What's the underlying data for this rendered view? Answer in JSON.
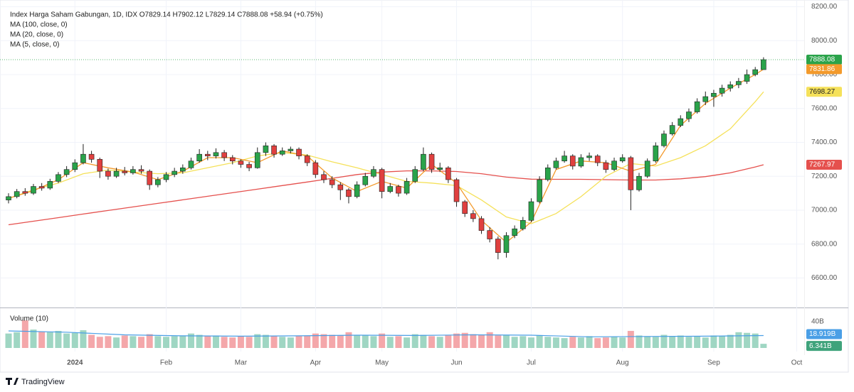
{
  "chart_data": {
    "type": "candlestick",
    "title": "Index Harga Saham Gabungan, 1D, IDX  O7829.14  H7902.12  L7829.14  C7888.08  +58.94 (+0.75%)",
    "up_color": "#2aa34a",
    "down_color": "#e0403f",
    "xlim": [
      -1.03,
      95.9
    ],
    "xticks": [
      {
        "value": 8,
        "label": "2024"
      },
      {
        "value": 19,
        "label": "Feb"
      },
      {
        "value": 28,
        "label": "Mar"
      },
      {
        "value": 37,
        "label": "Apr"
      },
      {
        "value": 45,
        "label": "May"
      },
      {
        "value": 54,
        "label": "Jun"
      },
      {
        "value": 63,
        "label": "Jul"
      },
      {
        "value": 74,
        "label": "Aug"
      },
      {
        "value": 85,
        "label": "Sep"
      },
      {
        "value": 95,
        "label": "Oct"
      }
    ],
    "ylim": [
      6430,
      8240
    ],
    "yticks": [
      {
        "value": 6600,
        "label": "6600.00"
      },
      {
        "value": 6800,
        "label": "6800.00"
      },
      {
        "value": 7000,
        "label": "7000.00"
      },
      {
        "value": 7200,
        "label": "7200.00"
      },
      {
        "value": 7400,
        "label": "7400.00"
      },
      {
        "value": 7600,
        "label": "7600.00"
      },
      {
        "value": 7800,
        "label": "7800.00"
      },
      {
        "value": 8000,
        "label": "8000.00"
      },
      {
        "value": 8200,
        "label": "8200.00"
      }
    ],
    "grid": true,
    "candles": [
      [
        7060,
        7100,
        7040,
        7080
      ],
      [
        7080,
        7125,
        7070,
        7110
      ],
      [
        7110,
        7130,
        7085,
        7100
      ],
      [
        7100,
        7155,
        7090,
        7140
      ],
      [
        7140,
        7160,
        7115,
        7130
      ],
      [
        7130,
        7185,
        7120,
        7170
      ],
      [
        7170,
        7225,
        7160,
        7210
      ],
      [
        7210,
        7260,
        7195,
        7240
      ],
      [
        7240,
        7300,
        7225,
        7280
      ],
      [
        7280,
        7390,
        7270,
        7330
      ],
      [
        7330,
        7350,
        7280,
        7300
      ],
      [
        7300,
        7310,
        7190,
        7230
      ],
      [
        7230,
        7245,
        7180,
        7200
      ],
      [
        7200,
        7250,
        7190,
        7230
      ],
      [
        7230,
        7255,
        7205,
        7220
      ],
      [
        7220,
        7260,
        7210,
        7240
      ],
      [
        7240,
        7265,
        7215,
        7230
      ],
      [
        7230,
        7240,
        7120,
        7150
      ],
      [
        7150,
        7195,
        7135,
        7180
      ],
      [
        7180,
        7225,
        7165,
        7210
      ],
      [
        7210,
        7250,
        7195,
        7230
      ],
      [
        7230,
        7270,
        7215,
        7250
      ],
      [
        7250,
        7310,
        7240,
        7290
      ],
      [
        7290,
        7360,
        7280,
        7330
      ],
      [
        7330,
        7350,
        7295,
        7320
      ],
      [
        7320,
        7365,
        7305,
        7340
      ],
      [
        7340,
        7355,
        7290,
        7310
      ],
      [
        7310,
        7325,
        7270,
        7290
      ],
      [
        7290,
        7300,
        7250,
        7270
      ],
      [
        7270,
        7285,
        7230,
        7250
      ],
      [
        7250,
        7370,
        7245,
        7340
      ],
      [
        7340,
        7400,
        7320,
        7380
      ],
      [
        7380,
        7390,
        7310,
        7330
      ],
      [
        7330,
        7370,
        7320,
        7350
      ],
      [
        7350,
        7375,
        7335,
        7360
      ],
      [
        7360,
        7370,
        7300,
        7320
      ],
      [
        7320,
        7330,
        7260,
        7280
      ],
      [
        7280,
        7295,
        7190,
        7210
      ],
      [
        7210,
        7230,
        7160,
        7180
      ],
      [
        7180,
        7200,
        7130,
        7150
      ],
      [
        7150,
        7165,
        7060,
        7120
      ],
      [
        7120,
        7130,
        7040,
        7080
      ],
      [
        7080,
        7170,
        7070,
        7150
      ],
      [
        7150,
        7220,
        7140,
        7200
      ],
      [
        7200,
        7260,
        7190,
        7240
      ],
      [
        7240,
        7250,
        7070,
        7110
      ],
      [
        7110,
        7160,
        7100,
        7140
      ],
      [
        7140,
        7150,
        7080,
        7100
      ],
      [
        7100,
        7190,
        7090,
        7170
      ],
      [
        7170,
        7260,
        7160,
        7240
      ],
      [
        7240,
        7370,
        7230,
        7330
      ],
      [
        7330,
        7340,
        7220,
        7240
      ],
      [
        7240,
        7280,
        7225,
        7250
      ],
      [
        7250,
        7260,
        7160,
        7180
      ],
      [
        7180,
        7190,
        7020,
        7050
      ],
      [
        7050,
        7060,
        6960,
        6980
      ],
      [
        6980,
        7000,
        6930,
        6950
      ],
      [
        6950,
        6965,
        6860,
        6880
      ],
      [
        6880,
        6900,
        6810,
        6830
      ],
      [
        6830,
        6845,
        6710,
        6750
      ],
      [
        6750,
        6870,
        6720,
        6850
      ],
      [
        6850,
        6910,
        6835,
        6890
      ],
      [
        6890,
        6960,
        6880,
        6940
      ],
      [
        6940,
        7070,
        6930,
        7050
      ],
      [
        7050,
        7200,
        7040,
        7180
      ],
      [
        7180,
        7270,
        7170,
        7250
      ],
      [
        7250,
        7310,
        7240,
        7290
      ],
      [
        7290,
        7350,
        7280,
        7320
      ],
      [
        7320,
        7330,
        7240,
        7260
      ],
      [
        7260,
        7330,
        7250,
        7310
      ],
      [
        7310,
        7340,
        7290,
        7320
      ],
      [
        7320,
        7330,
        7260,
        7280
      ],
      [
        7280,
        7295,
        7220,
        7240
      ],
      [
        7240,
        7310,
        7230,
        7290
      ],
      [
        7290,
        7330,
        7280,
        7310
      ],
      [
        7310,
        7320,
        7000,
        7120
      ],
      [
        7120,
        7220,
        7110,
        7200
      ],
      [
        7200,
        7305,
        7190,
        7290
      ],
      [
        7290,
        7400,
        7280,
        7380
      ],
      [
        7380,
        7470,
        7370,
        7450
      ],
      [
        7450,
        7520,
        7440,
        7500
      ],
      [
        7500,
        7560,
        7490,
        7540
      ],
      [
        7540,
        7600,
        7520,
        7580
      ],
      [
        7580,
        7660,
        7570,
        7640
      ],
      [
        7640,
        7700,
        7620,
        7670
      ],
      [
        7670,
        7710,
        7610,
        7690
      ],
      [
        7690,
        7740,
        7670,
        7720
      ],
      [
        7720,
        7760,
        7700,
        7740
      ],
      [
        7740,
        7780,
        7720,
        7760
      ],
      [
        7760,
        7830,
        7745,
        7800
      ],
      [
        7800,
        7845,
        7790,
        7829
      ],
      [
        7829.14,
        7902.12,
        7829.14,
        7888.08
      ]
    ],
    "series": [
      {
        "name": "MA (100, close, 0)",
        "color": "#e5504d",
        "x": [
          0,
          3,
          6,
          9,
          12,
          15,
          18,
          21,
          24,
          27,
          30,
          33,
          36,
          39,
          42,
          45,
          48,
          51,
          54,
          57,
          60,
          63,
          66,
          69,
          72,
          75,
          78,
          81,
          84,
          87,
          90,
          91
        ],
        "values": [
          6914,
          6935,
          6956,
          6977,
          6998,
          7019,
          7040,
          7061,
          7082,
          7103,
          7124,
          7145,
          7166,
          7188,
          7210,
          7225,
          7232,
          7232,
          7228,
          7215,
          7195,
          7183,
          7182,
          7182,
          7180,
          7178,
          7178,
          7185,
          7198,
          7220,
          7255,
          7267.97
        ]
      },
      {
        "name": "MA (20, close, 0)",
        "color": "#f5e15a",
        "x": [
          0,
          3,
          6,
          9,
          12,
          15,
          18,
          21,
          24,
          27,
          30,
          33,
          36,
          39,
          42,
          45,
          48,
          51,
          54,
          57,
          60,
          63,
          66,
          69,
          72,
          75,
          78,
          81,
          84,
          87,
          90,
          91
        ],
        "values": [
          7069,
          7120,
          7160,
          7215,
          7237,
          7225,
          7215,
          7220,
          7250,
          7280,
          7320,
          7340,
          7325,
          7285,
          7250,
          7210,
          7170,
          7160,
          7145,
          7060,
          6960,
          6920,
          6980,
          7080,
          7200,
          7275,
          7260,
          7310,
          7380,
          7480,
          7640,
          7698.27
        ]
      },
      {
        "name": "MA (5, close, 0)",
        "color": "#f39a2c",
        "x": [
          0,
          3,
          6,
          9,
          12,
          15,
          18,
          21,
          24,
          27,
          30,
          33,
          36,
          39,
          42,
          45,
          48,
          51,
          54,
          57,
          60,
          63,
          66,
          69,
          72,
          75,
          78,
          81,
          84,
          87,
          90,
          91
        ],
        "values": [
          7070,
          7115,
          7180,
          7280,
          7250,
          7225,
          7180,
          7230,
          7310,
          7310,
          7280,
          7350,
          7320,
          7190,
          7110,
          7170,
          7130,
          7270,
          7160,
          6940,
          6810,
          6930,
          7240,
          7290,
          7280,
          7230,
          7270,
          7500,
          7630,
          7720,
          7800,
          7831.86
        ]
      }
    ],
    "volume": {
      "title": "Volume (10)",
      "ylim": [
        0,
        57.3
      ],
      "yticks": [
        {
          "value": 40,
          "label": "40B"
        },
        0
      ],
      "up_color": "#9fd6c3",
      "down_color": "#f4a7aa",
      "values": [
        22,
        24,
        42,
        28,
        25,
        24,
        26,
        22,
        23,
        27,
        20,
        17,
        18,
        16,
        19,
        18,
        17,
        21,
        18,
        17,
        18,
        19,
        22,
        20,
        18,
        19,
        17,
        16,
        18,
        17,
        21,
        20,
        18,
        17,
        16,
        18,
        19,
        22,
        21,
        20,
        19,
        24,
        20,
        19,
        18,
        22,
        17,
        18,
        16,
        21,
        20,
        18,
        17,
        19,
        22,
        23,
        21,
        20,
        24,
        19,
        20,
        17,
        18,
        16,
        19,
        17,
        16,
        15,
        17,
        16,
        18,
        15,
        16,
        17,
        16,
        26,
        19,
        18,
        17,
        20,
        18,
        19,
        17,
        18,
        16,
        19,
        18,
        20,
        24,
        23,
        22,
        6.341
      ],
      "last_label": "6.341B",
      "ma": {
        "color": "#4a9fe6",
        "x": [
          0,
          7,
          14,
          21,
          28,
          35,
          42,
          49,
          56,
          63,
          70,
          77,
          84,
          91
        ],
        "values": [
          26,
          24,
          20,
          18.5,
          18,
          18.5,
          19.5,
          19,
          20,
          19.5,
          17,
          17.5,
          18,
          18.919
        ],
        "label": "18.919B"
      }
    }
  },
  "footer": {
    "brand": "TradingView"
  }
}
